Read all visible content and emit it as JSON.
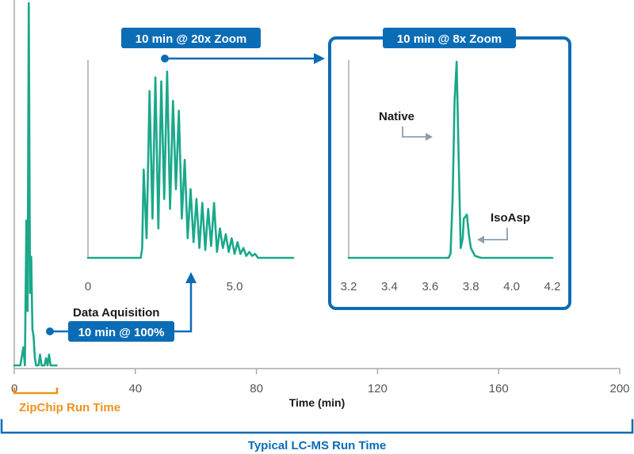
{
  "colors": {
    "trace": "#1aa88a",
    "accent_blue": "#0b6cb6",
    "accent_orange": "#f0911e",
    "axis": "#aaaaaa",
    "arrow_grey": "#8aa0ad"
  },
  "chart_data": [
    {
      "type": "line",
      "id": "main",
      "x_title": "Time (min)",
      "xlim": [
        0,
        200
      ],
      "xticks": [
        0,
        40,
        80,
        120,
        160,
        200
      ],
      "series": [
        {
          "x": [
            0,
            2,
            3,
            3.5,
            4,
            4.4,
            4.8,
            5.2,
            5.6,
            6,
            6.4,
            6.8,
            7.2,
            7.6,
            8,
            8.5,
            9,
            9.5,
            10,
            10.5,
            11,
            11.5,
            12,
            12.5,
            13,
            14
          ],
          "y": [
            0,
            0,
            0.05,
            0,
            0.4,
            0.15,
            1.0,
            0.2,
            0.3,
            0.1,
            0.08,
            0.02,
            0,
            0,
            0,
            0.03,
            0,
            0,
            0,
            0.02,
            0,
            0.03,
            0,
            0,
            0,
            0
          ]
        }
      ],
      "annotation": {
        "title": "Data Aquisition",
        "badge": "10 min @ 100%"
      },
      "brackets": {
        "zipchip": "ZipChip Run Time",
        "lcms": "Typical LC-MS Run Time"
      }
    },
    {
      "type": "line",
      "id": "zoom20",
      "badge": "10 min @ 20x Zoom",
      "xlim": [
        0,
        7
      ],
      "xticks": [
        0,
        5.0
      ],
      "xtick_labels": [
        "0",
        "5.0"
      ],
      "series": [
        {
          "x": [
            0,
            1.8,
            1.85,
            1.9,
            2.0,
            2.1,
            2.2,
            2.3,
            2.4,
            2.5,
            2.6,
            2.7,
            2.8,
            2.9,
            3.0,
            3.1,
            3.2,
            3.3,
            3.4,
            3.5,
            3.6,
            3.7,
            3.8,
            3.9,
            4.0,
            4.1,
            4.2,
            4.3,
            4.4,
            4.5,
            4.6,
            4.7,
            4.8,
            4.9,
            5.0,
            5.1,
            5.2,
            5.3,
            5.4,
            5.5,
            5.6,
            5.7,
            5.8,
            6.0,
            7.0
          ],
          "y": [
            0,
            0,
            0.05,
            0.45,
            0.1,
            0.85,
            0.2,
            0.92,
            0.15,
            0.9,
            0.3,
            0.95,
            0.25,
            0.8,
            0.35,
            0.75,
            0.2,
            0.5,
            0.1,
            0.35,
            0.08,
            0.3,
            0.05,
            0.28,
            0.04,
            0.25,
            0.06,
            0.28,
            0.03,
            0.15,
            0.05,
            0.12,
            0.03,
            0.1,
            0.02,
            0.08,
            0.02,
            0.05,
            0.01,
            0.03,
            0.01,
            0.02,
            0,
            0,
            0
          ]
        }
      ]
    },
    {
      "type": "line",
      "id": "zoom8",
      "badge": "10 min @ 8x Zoom",
      "xlim": [
        3.2,
        4.2
      ],
      "xticks": [
        3.2,
        3.4,
        3.6,
        3.8,
        4.0,
        4.2
      ],
      "xtick_labels": [
        "3.2",
        "3.4",
        "3.6",
        "3.8",
        "4.0",
        "4.2"
      ],
      "series": [
        {
          "x": [
            3.2,
            3.69,
            3.7,
            3.71,
            3.72,
            3.73,
            3.74,
            3.75,
            3.76,
            3.765,
            3.78,
            3.79,
            3.8,
            3.82,
            3.85,
            4.2
          ],
          "y": [
            0,
            0,
            0.02,
            0.3,
            0.8,
            1.0,
            0.5,
            0.05,
            0.1,
            0.2,
            0.22,
            0.12,
            0.05,
            0.01,
            0,
            0
          ]
        }
      ],
      "annotations": [
        {
          "label": "Native"
        },
        {
          "label": "IsoAsp"
        }
      ]
    }
  ]
}
